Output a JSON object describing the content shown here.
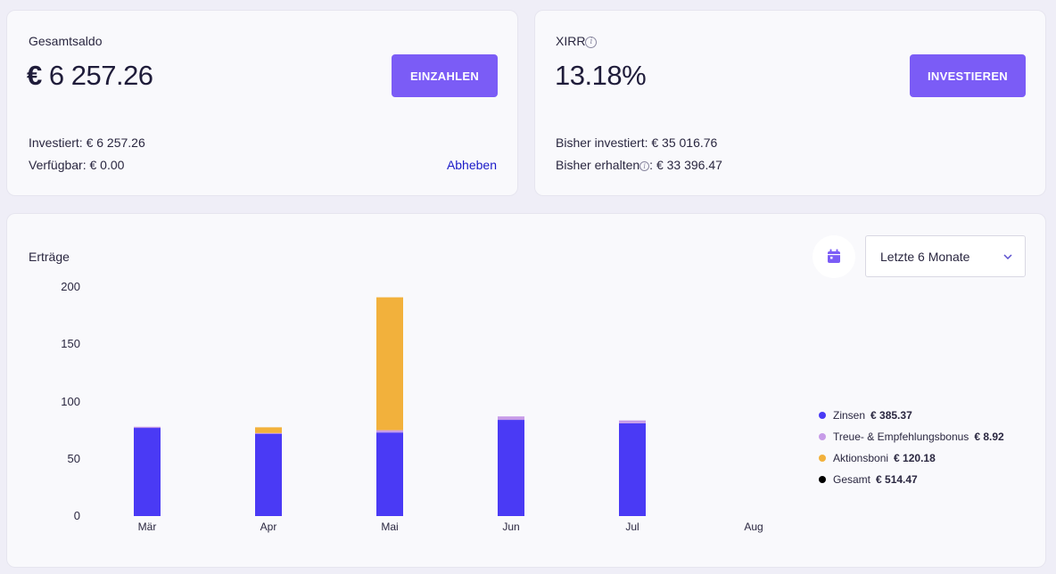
{
  "balance_card": {
    "label": "Gesamtsaldo",
    "currency": "€",
    "amount": "6 257.26",
    "deposit_button": "EINZAHLEN",
    "invested_line": "Investiert: € 6 257.26",
    "available_line": "Verfügbar: € 0.00",
    "withdraw_link": "Abheben"
  },
  "xirr_card": {
    "label": "XIRR",
    "value": "13.18%",
    "invest_button": "INVESTIEREN",
    "invested_so_far": "Bisher investiert: € 35 016.76",
    "received_label": "Bisher erhalten",
    "received_value": ": € 33 396.47"
  },
  "earnings_card": {
    "title": "Erträge",
    "period_select": "Letzte 6 Monate",
    "calendar_icon": "calendar-icon",
    "dropdown_icon": "chevron-down-icon"
  },
  "colors": {
    "Zinsen": "#4a3af5",
    "Treue": "#c79be8",
    "Aktionsboni": "#f2b13c",
    "Gesamt": "#000000",
    "accent": "#7b5cf6"
  },
  "legend": [
    {
      "name": "Zinsen",
      "value": "€ 385.37",
      "color": "#4a3af5"
    },
    {
      "name": "Treue- & Empfehlungsbonus",
      "value": "€ 8.92",
      "color": "#c79be8"
    },
    {
      "name": "Aktionsboni",
      "value": "€ 120.18",
      "color": "#f2b13c"
    },
    {
      "name": "Gesamt",
      "value": "€ 514.47",
      "color": "#000000"
    }
  ],
  "chart_data": {
    "type": "bar",
    "stacked": true,
    "title": "Erträge",
    "categories": [
      "Mär",
      "Apr",
      "Mai",
      "Jun",
      "Jul",
      "Aug"
    ],
    "yticks": [
      "0",
      "50",
      "100",
      "150",
      "200"
    ],
    "ylim": [
      0,
      200
    ],
    "series": [
      {
        "name": "Zinsen",
        "values": [
          77,
          72,
          73,
          84,
          81,
          0
        ]
      },
      {
        "name": "Treue- & Empfehlungsbonus",
        "values": [
          1,
          0.5,
          2,
          3,
          2.5,
          0
        ]
      },
      {
        "name": "Aktionsboni",
        "values": [
          0,
          5,
          116,
          0,
          0,
          0
        ]
      }
    ],
    "legend_position": "right",
    "grid": false
  }
}
